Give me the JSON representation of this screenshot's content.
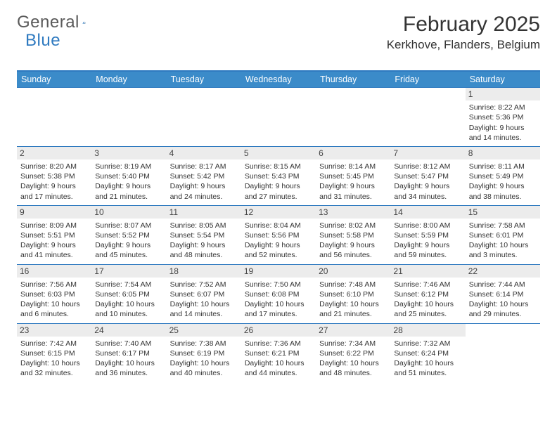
{
  "logo": {
    "text_general": "General",
    "text_blue": "Blue"
  },
  "title": "February 2025",
  "location": "Kerkhove, Flanders, Belgium",
  "colors": {
    "header_bar": "#3b8bc9",
    "header_border": "#2f7ac0",
    "daynum_bg": "#ececec",
    "text": "#333333",
    "bg": "#ffffff"
  },
  "fonts": {
    "title_pt": 30,
    "location_pt": 17,
    "weekday_pt": 12.5,
    "body_pt": 10.5
  },
  "weekdays": [
    "Sunday",
    "Monday",
    "Tuesday",
    "Wednesday",
    "Thursday",
    "Friday",
    "Saturday"
  ],
  "weeks": [
    [
      {
        "n": "",
        "sr": "",
        "ss": "",
        "dl1": "",
        "dl2": ""
      },
      {
        "n": "",
        "sr": "",
        "ss": "",
        "dl1": "",
        "dl2": ""
      },
      {
        "n": "",
        "sr": "",
        "ss": "",
        "dl1": "",
        "dl2": ""
      },
      {
        "n": "",
        "sr": "",
        "ss": "",
        "dl1": "",
        "dl2": ""
      },
      {
        "n": "",
        "sr": "",
        "ss": "",
        "dl1": "",
        "dl2": ""
      },
      {
        "n": "",
        "sr": "",
        "ss": "",
        "dl1": "",
        "dl2": ""
      },
      {
        "n": "1",
        "sr": "Sunrise: 8:22 AM",
        "ss": "Sunset: 5:36 PM",
        "dl1": "Daylight: 9 hours",
        "dl2": "and 14 minutes."
      }
    ],
    [
      {
        "n": "2",
        "sr": "Sunrise: 8:20 AM",
        "ss": "Sunset: 5:38 PM",
        "dl1": "Daylight: 9 hours",
        "dl2": "and 17 minutes."
      },
      {
        "n": "3",
        "sr": "Sunrise: 8:19 AM",
        "ss": "Sunset: 5:40 PM",
        "dl1": "Daylight: 9 hours",
        "dl2": "and 21 minutes."
      },
      {
        "n": "4",
        "sr": "Sunrise: 8:17 AM",
        "ss": "Sunset: 5:42 PM",
        "dl1": "Daylight: 9 hours",
        "dl2": "and 24 minutes."
      },
      {
        "n": "5",
        "sr": "Sunrise: 8:15 AM",
        "ss": "Sunset: 5:43 PM",
        "dl1": "Daylight: 9 hours",
        "dl2": "and 27 minutes."
      },
      {
        "n": "6",
        "sr": "Sunrise: 8:14 AM",
        "ss": "Sunset: 5:45 PM",
        "dl1": "Daylight: 9 hours",
        "dl2": "and 31 minutes."
      },
      {
        "n": "7",
        "sr": "Sunrise: 8:12 AM",
        "ss": "Sunset: 5:47 PM",
        "dl1": "Daylight: 9 hours",
        "dl2": "and 34 minutes."
      },
      {
        "n": "8",
        "sr": "Sunrise: 8:11 AM",
        "ss": "Sunset: 5:49 PM",
        "dl1": "Daylight: 9 hours",
        "dl2": "and 38 minutes."
      }
    ],
    [
      {
        "n": "9",
        "sr": "Sunrise: 8:09 AM",
        "ss": "Sunset: 5:51 PM",
        "dl1": "Daylight: 9 hours",
        "dl2": "and 41 minutes."
      },
      {
        "n": "10",
        "sr": "Sunrise: 8:07 AM",
        "ss": "Sunset: 5:52 PM",
        "dl1": "Daylight: 9 hours",
        "dl2": "and 45 minutes."
      },
      {
        "n": "11",
        "sr": "Sunrise: 8:05 AM",
        "ss": "Sunset: 5:54 PM",
        "dl1": "Daylight: 9 hours",
        "dl2": "and 48 minutes."
      },
      {
        "n": "12",
        "sr": "Sunrise: 8:04 AM",
        "ss": "Sunset: 5:56 PM",
        "dl1": "Daylight: 9 hours",
        "dl2": "and 52 minutes."
      },
      {
        "n": "13",
        "sr": "Sunrise: 8:02 AM",
        "ss": "Sunset: 5:58 PM",
        "dl1": "Daylight: 9 hours",
        "dl2": "and 56 minutes."
      },
      {
        "n": "14",
        "sr": "Sunrise: 8:00 AM",
        "ss": "Sunset: 5:59 PM",
        "dl1": "Daylight: 9 hours",
        "dl2": "and 59 minutes."
      },
      {
        "n": "15",
        "sr": "Sunrise: 7:58 AM",
        "ss": "Sunset: 6:01 PM",
        "dl1": "Daylight: 10 hours",
        "dl2": "and 3 minutes."
      }
    ],
    [
      {
        "n": "16",
        "sr": "Sunrise: 7:56 AM",
        "ss": "Sunset: 6:03 PM",
        "dl1": "Daylight: 10 hours",
        "dl2": "and 6 minutes."
      },
      {
        "n": "17",
        "sr": "Sunrise: 7:54 AM",
        "ss": "Sunset: 6:05 PM",
        "dl1": "Daylight: 10 hours",
        "dl2": "and 10 minutes."
      },
      {
        "n": "18",
        "sr": "Sunrise: 7:52 AM",
        "ss": "Sunset: 6:07 PM",
        "dl1": "Daylight: 10 hours",
        "dl2": "and 14 minutes."
      },
      {
        "n": "19",
        "sr": "Sunrise: 7:50 AM",
        "ss": "Sunset: 6:08 PM",
        "dl1": "Daylight: 10 hours",
        "dl2": "and 17 minutes."
      },
      {
        "n": "20",
        "sr": "Sunrise: 7:48 AM",
        "ss": "Sunset: 6:10 PM",
        "dl1": "Daylight: 10 hours",
        "dl2": "and 21 minutes."
      },
      {
        "n": "21",
        "sr": "Sunrise: 7:46 AM",
        "ss": "Sunset: 6:12 PM",
        "dl1": "Daylight: 10 hours",
        "dl2": "and 25 minutes."
      },
      {
        "n": "22",
        "sr": "Sunrise: 7:44 AM",
        "ss": "Sunset: 6:14 PM",
        "dl1": "Daylight: 10 hours",
        "dl2": "and 29 minutes."
      }
    ],
    [
      {
        "n": "23",
        "sr": "Sunrise: 7:42 AM",
        "ss": "Sunset: 6:15 PM",
        "dl1": "Daylight: 10 hours",
        "dl2": "and 32 minutes."
      },
      {
        "n": "24",
        "sr": "Sunrise: 7:40 AM",
        "ss": "Sunset: 6:17 PM",
        "dl1": "Daylight: 10 hours",
        "dl2": "and 36 minutes."
      },
      {
        "n": "25",
        "sr": "Sunrise: 7:38 AM",
        "ss": "Sunset: 6:19 PM",
        "dl1": "Daylight: 10 hours",
        "dl2": "and 40 minutes."
      },
      {
        "n": "26",
        "sr": "Sunrise: 7:36 AM",
        "ss": "Sunset: 6:21 PM",
        "dl1": "Daylight: 10 hours",
        "dl2": "and 44 minutes."
      },
      {
        "n": "27",
        "sr": "Sunrise: 7:34 AM",
        "ss": "Sunset: 6:22 PM",
        "dl1": "Daylight: 10 hours",
        "dl2": "and 48 minutes."
      },
      {
        "n": "28",
        "sr": "Sunrise: 7:32 AM",
        "ss": "Sunset: 6:24 PM",
        "dl1": "Daylight: 10 hours",
        "dl2": "and 51 minutes."
      },
      {
        "n": "",
        "sr": "",
        "ss": "",
        "dl1": "",
        "dl2": ""
      }
    ]
  ]
}
